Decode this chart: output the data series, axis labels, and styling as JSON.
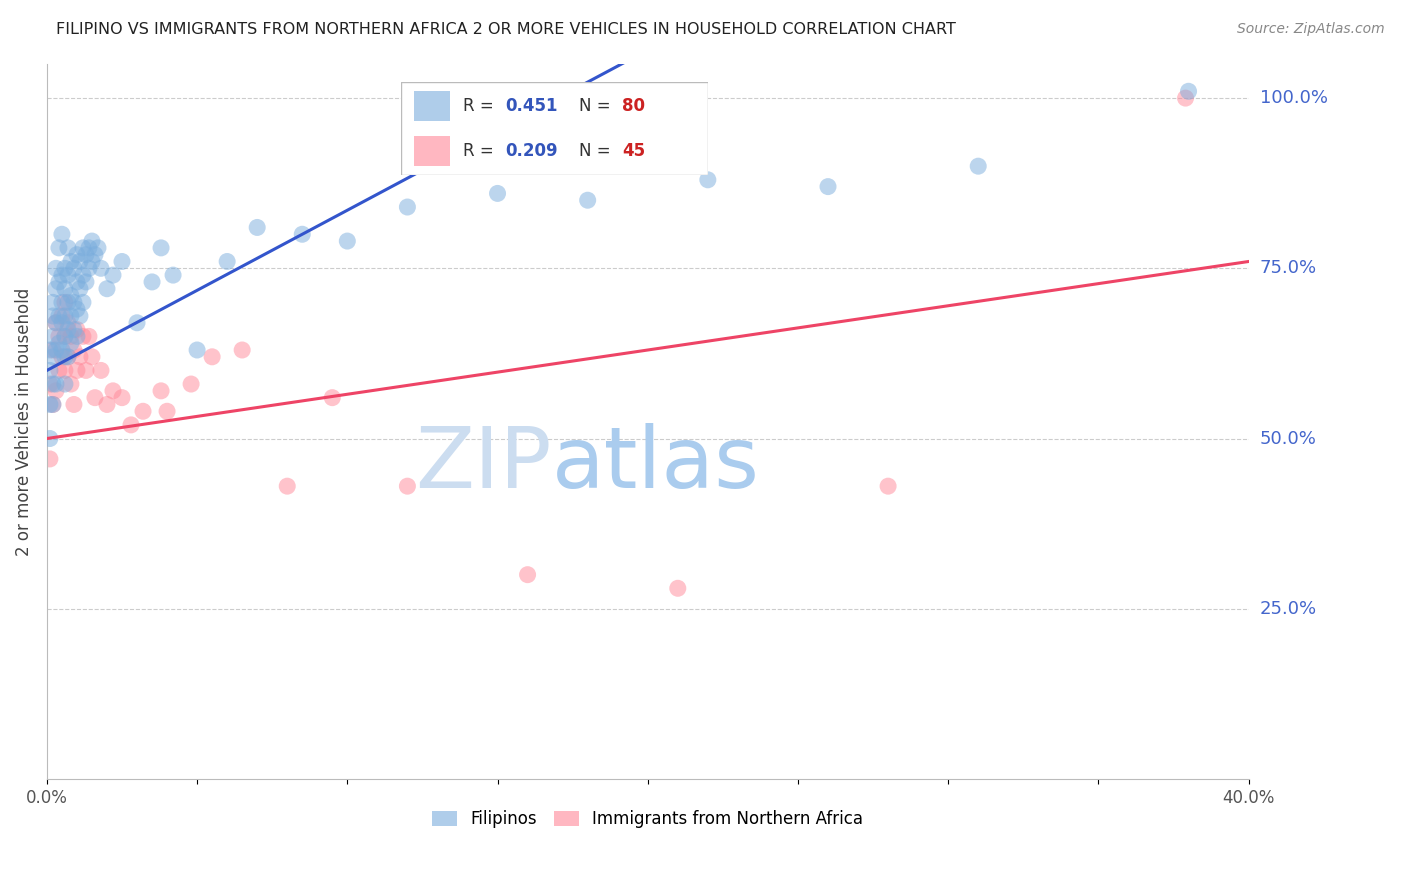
{
  "title": "FILIPINO VS IMMIGRANTS FROM NORTHERN AFRICA 2 OR MORE VEHICLES IN HOUSEHOLD CORRELATION CHART",
  "source": "Source: ZipAtlas.com",
  "ylabel": "2 or more Vehicles in Household",
  "xlim": [
    0.0,
    0.4
  ],
  "ylim": [
    0.0,
    1.05
  ],
  "xtick_vals": [
    0.0,
    0.05,
    0.1,
    0.15,
    0.2,
    0.25,
    0.3,
    0.35,
    0.4
  ],
  "xticklabels": [
    "0.0%",
    "",
    "",
    "",
    "",
    "",
    "",
    "",
    "40.0%"
  ],
  "ytick_positions": [
    0.25,
    0.5,
    0.75,
    1.0
  ],
  "ytick_labels": [
    "25.0%",
    "50.0%",
    "75.0%",
    "100.0%"
  ],
  "grid_color": "#cccccc",
  "background_color": "#ffffff",
  "filipinos_color": "#7aaddd",
  "immigrants_color": "#ff8899",
  "trend_blue": "#3355cc",
  "trend_pink": "#ee4466",
  "fil_R": 0.451,
  "fil_N": 80,
  "imm_R": 0.209,
  "imm_N": 45,
  "filipinos_x": [
    0.001,
    0.001,
    0.001,
    0.001,
    0.002,
    0.002,
    0.002,
    0.002,
    0.002,
    0.002,
    0.003,
    0.003,
    0.003,
    0.003,
    0.003,
    0.004,
    0.004,
    0.004,
    0.004,
    0.005,
    0.005,
    0.005,
    0.005,
    0.005,
    0.006,
    0.006,
    0.006,
    0.006,
    0.006,
    0.006,
    0.007,
    0.007,
    0.007,
    0.007,
    0.007,
    0.008,
    0.008,
    0.008,
    0.008,
    0.009,
    0.009,
    0.009,
    0.01,
    0.01,
    0.01,
    0.01,
    0.011,
    0.011,
    0.011,
    0.012,
    0.012,
    0.012,
    0.013,
    0.013,
    0.014,
    0.014,
    0.015,
    0.015,
    0.016,
    0.017,
    0.018,
    0.02,
    0.022,
    0.025,
    0.03,
    0.035,
    0.038,
    0.042,
    0.05,
    0.06,
    0.07,
    0.085,
    0.1,
    0.12,
    0.15,
    0.18,
    0.22,
    0.26,
    0.31,
    0.38
  ],
  "filipinos_y": [
    0.6,
    0.63,
    0.55,
    0.5,
    0.65,
    0.68,
    0.62,
    0.58,
    0.55,
    0.7,
    0.72,
    0.67,
    0.63,
    0.75,
    0.58,
    0.73,
    0.68,
    0.64,
    0.78,
    0.7,
    0.74,
    0.67,
    0.63,
    0.8,
    0.72,
    0.68,
    0.75,
    0.65,
    0.62,
    0.58,
    0.74,
    0.7,
    0.66,
    0.62,
    0.78,
    0.76,
    0.71,
    0.68,
    0.64,
    0.75,
    0.7,
    0.66,
    0.77,
    0.73,
    0.69,
    0.65,
    0.76,
    0.72,
    0.68,
    0.78,
    0.74,
    0.7,
    0.77,
    0.73,
    0.78,
    0.75,
    0.79,
    0.76,
    0.77,
    0.78,
    0.75,
    0.72,
    0.74,
    0.76,
    0.67,
    0.73,
    0.78,
    0.74,
    0.63,
    0.76,
    0.81,
    0.8,
    0.79,
    0.84,
    0.86,
    0.85,
    0.88,
    0.87,
    0.9,
    1.01
  ],
  "immigrants_x": [
    0.001,
    0.001,
    0.002,
    0.002,
    0.003,
    0.003,
    0.004,
    0.004,
    0.005,
    0.005,
    0.006,
    0.006,
    0.006,
    0.007,
    0.007,
    0.008,
    0.008,
    0.009,
    0.009,
    0.01,
    0.01,
    0.011,
    0.012,
    0.013,
    0.014,
    0.015,
    0.016,
    0.018,
    0.02,
    0.022,
    0.025,
    0.028,
    0.032,
    0.038,
    0.04,
    0.048,
    0.055,
    0.065,
    0.08,
    0.095,
    0.12,
    0.16,
    0.21,
    0.28,
    0.379
  ],
  "immigrants_y": [
    0.58,
    0.47,
    0.63,
    0.55,
    0.67,
    0.57,
    0.65,
    0.6,
    0.68,
    0.62,
    0.7,
    0.65,
    0.6,
    0.67,
    0.62,
    0.65,
    0.58,
    0.63,
    0.55,
    0.66,
    0.6,
    0.62,
    0.65,
    0.6,
    0.65,
    0.62,
    0.56,
    0.6,
    0.55,
    0.57,
    0.56,
    0.52,
    0.54,
    0.57,
    0.54,
    0.58,
    0.62,
    0.63,
    0.43,
    0.56,
    0.43,
    0.3,
    0.28,
    0.43,
    1.0
  ],
  "watermark_zip": "ZIP",
  "watermark_atlas": "atlas",
  "watermark_color_zip": "#ccddf0",
  "watermark_color_atlas": "#aaccee"
}
